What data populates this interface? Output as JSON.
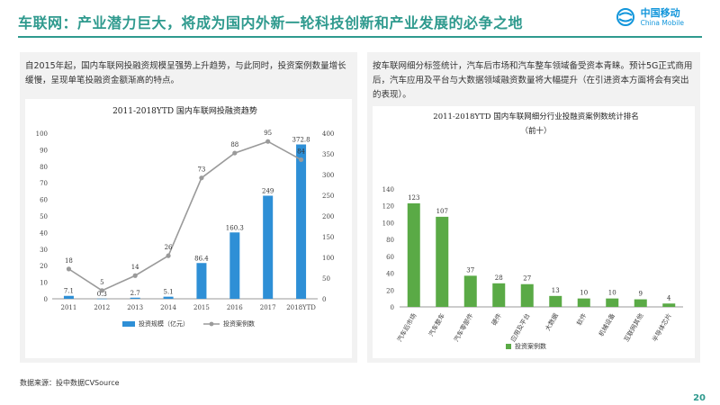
{
  "slide": {
    "title": "车联网：产业潜力巨大，将成为国内外新一轮科技创新和产业发展的必争之地",
    "logo_cn": "中国移动",
    "logo_en": "China Mobile",
    "source": "数据来源：投中数据CVSource",
    "page_number": "20"
  },
  "left_panel": {
    "description": "自2015年起，国内车联网投融资规模呈强势上升趋势，与此同时，投资案例数量增长缓慢，呈现单笔投融资金额渐高的特点。"
  },
  "right_panel": {
    "description": "按车联网细分标签统计，汽车后市场和汽车整车领域备受资本青睐。预计5G正式商用后，汽车应用及平台与大数据领域融资数量将大幅提升（在引进资本方面将会有突出的表现）。"
  },
  "colors": {
    "brand": "#2f9a8e",
    "bar_blue": "#2e8fd6",
    "line_gray": "#9a9a9a",
    "bar_green": "#5aaa46",
    "logo_blue": "#1296db"
  },
  "chart_data": [
    {
      "type": "bar",
      "title": "2011-2018YTD 国内车联网投融资趋势",
      "categories": [
        "2011",
        "2012",
        "2013",
        "2014",
        "2015",
        "2016",
        "2017",
        "2018YTD"
      ],
      "series": [
        {
          "name": "投资规模（亿元）",
          "type": "bar",
          "axis": "right",
          "values": [
            7.1,
            0.3,
            2.7,
            5.1,
            86.4,
            160.3,
            249,
            372.8
          ]
        },
        {
          "name": "投资案例数",
          "type": "line",
          "axis": "left",
          "values": [
            18,
            5,
            14,
            26,
            73,
            88,
            95,
            84
          ]
        }
      ],
      "data_labels_bar": [
        "7.1",
        "0.3",
        "2.7",
        "5.1",
        "86.4",
        "160.3",
        "249",
        "372.8"
      ],
      "data_labels_line": [
        "18",
        "5",
        "14",
        "26",
        "73",
        "88",
        "95",
        "84"
      ],
      "left_ticks": [
        "0",
        "10",
        "20",
        "30",
        "40",
        "50",
        "60",
        "70",
        "80",
        "90",
        "100"
      ],
      "right_ticks": [
        "0",
        "50",
        "100",
        "150",
        "200",
        "250",
        "300",
        "350",
        "400"
      ],
      "ylim_left": [
        0,
        100
      ],
      "ylim_right": [
        0,
        400
      ],
      "legend_position": "bottom"
    },
    {
      "type": "bar",
      "title": "2011-2018YTD 国内车联网细分行业投融资案例数统计排名",
      "subtitle": "（前十）",
      "categories": [
        "汽车后市场",
        "汽车整车",
        "汽车零部件",
        "硬件",
        "应用及平台",
        "大数据",
        "软件",
        "机械设备",
        "互联网其他",
        "半导体芯片"
      ],
      "series": [
        {
          "name": "投资案例数",
          "values": [
            123,
            107,
            37,
            28,
            27,
            13,
            10,
            10,
            9,
            4
          ]
        }
      ],
      "data_labels": [
        "123",
        "107",
        "37",
        "28",
        "27",
        "13",
        "10",
        "10",
        "9",
        "4"
      ],
      "y_ticks": [
        "0",
        "20",
        "40",
        "60",
        "80",
        "100",
        "120",
        "140"
      ],
      "ylim": [
        0,
        140
      ],
      "legend_position": "bottom"
    }
  ]
}
